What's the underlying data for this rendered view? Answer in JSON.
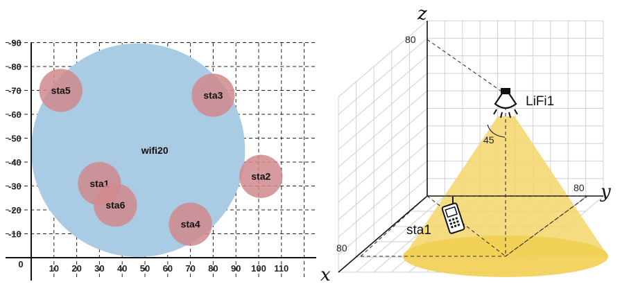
{
  "left_panel": {
    "x_ticks": [
      "0",
      "10",
      "20",
      "30",
      "40",
      "50",
      "60",
      "70",
      "80",
      "90",
      "100",
      "110"
    ],
    "y_ticks": [
      "-90",
      "-80",
      "-70",
      "-60",
      "-50",
      "-40",
      "-30",
      "-20",
      "-10"
    ],
    "access_point": {
      "label": "wifi20",
      "center": [
        47,
        45
      ],
      "radius": 47,
      "color": "#a9cbe3"
    },
    "stations": [
      {
        "label": "sta5",
        "x": 13,
        "y": 70
      },
      {
        "label": "sta3",
        "x": 80,
        "y": 68
      },
      {
        "label": "sta2",
        "x": 101,
        "y": 34
      },
      {
        "label": "sta1",
        "x": 30,
        "y": 31
      },
      {
        "label": "sta6",
        "x": 37,
        "y": 22
      },
      {
        "label": "sta4",
        "x": 70,
        "y": 14
      }
    ],
    "station_color": "#d08a8c",
    "station_radius": 9.5
  },
  "right_panel": {
    "axis_z": "z",
    "axis_y": "y",
    "axis_x": "x",
    "z_tick": "80",
    "y_tick": "80",
    "x_tick": "80",
    "light_label": "LiFi1",
    "angle_label": "45",
    "station_label": "sta1",
    "beam_color": "#f5d66a"
  }
}
